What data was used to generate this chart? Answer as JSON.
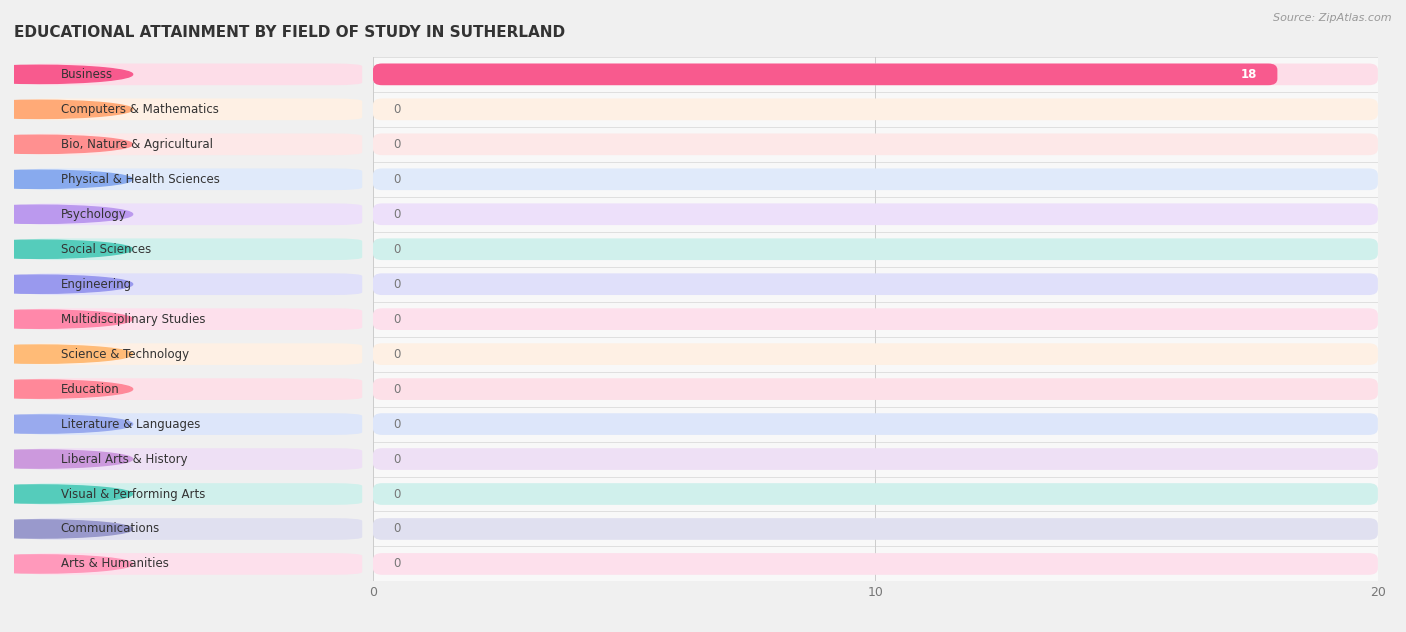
{
  "title": "EDUCATIONAL ATTAINMENT BY FIELD OF STUDY IN SUTHERLAND",
  "source": "Source: ZipAtlas.com",
  "categories": [
    "Business",
    "Computers & Mathematics",
    "Bio, Nature & Agricultural",
    "Physical & Health Sciences",
    "Psychology",
    "Social Sciences",
    "Engineering",
    "Multidisciplinary Studies",
    "Science & Technology",
    "Education",
    "Literature & Languages",
    "Liberal Arts & History",
    "Visual & Performing Arts",
    "Communications",
    "Arts & Humanities"
  ],
  "values": [
    18,
    0,
    0,
    0,
    0,
    0,
    0,
    0,
    0,
    0,
    0,
    0,
    0,
    0,
    0
  ],
  "bar_colors": [
    "#F85A8E",
    "#FFAA77",
    "#FF9090",
    "#88AAEE",
    "#BB99EE",
    "#55CCBB",
    "#9999EE",
    "#FF88AA",
    "#FFBB77",
    "#FF8899",
    "#99AAEE",
    "#CC99DD",
    "#55CCBB",
    "#9999CC",
    "#FF99BB"
  ],
  "bg_colors": [
    "#FDDDE8",
    "#FEF0E4",
    "#FDE8E8",
    "#E0EAFA",
    "#EDE0FA",
    "#D0F0EC",
    "#E0E0FA",
    "#FDE0EC",
    "#FEF0E4",
    "#FDE0E8",
    "#DDE6FA",
    "#EEE0F5",
    "#D0F0EC",
    "#E0E0F0",
    "#FDE0EC"
  ],
  "xlim": [
    0,
    20
  ],
  "xticks": [
    0,
    10,
    20
  ],
  "figure_bg": "#f0f0f0",
  "plot_bg": "#f8f8f8",
  "title_fontsize": 11,
  "bar_label_fontsize": 8.5
}
